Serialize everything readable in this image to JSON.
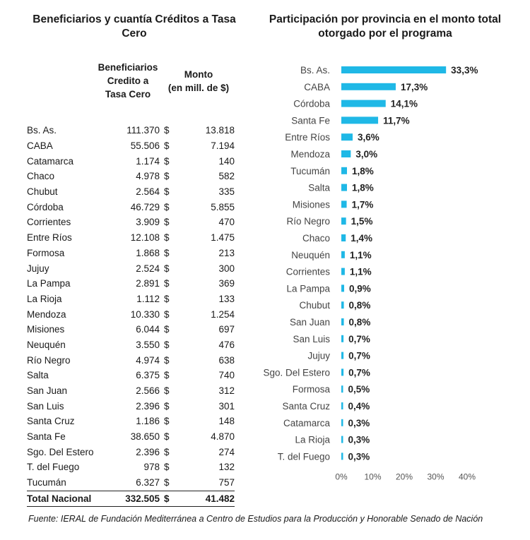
{
  "left_title": [
    "Beneficiarios y cuantía Créditos a Tasa",
    "Cero"
  ],
  "right_title": [
    "Participación por provincia en el monto total",
    "otorgado por el programa"
  ],
  "table": {
    "headers": {
      "beneficiarios": [
        "Beneficiarios",
        "Credito a",
        "Tasa Cero"
      ],
      "monto": [
        "Monto",
        "(en mill. de $)"
      ]
    },
    "rows": [
      {
        "provincia": "Bs. As.",
        "beneficiarios": "111.370",
        "moneda": "$",
        "monto": "13.818"
      },
      {
        "provincia": "CABA",
        "beneficiarios": "55.506",
        "moneda": "$",
        "monto": "7.194"
      },
      {
        "provincia": "Catamarca",
        "beneficiarios": "1.174",
        "moneda": "$",
        "monto": "140"
      },
      {
        "provincia": "Chaco",
        "beneficiarios": "4.978",
        "moneda": "$",
        "monto": "582"
      },
      {
        "provincia": "Chubut",
        "beneficiarios": "2.564",
        "moneda": "$",
        "monto": "335"
      },
      {
        "provincia": "Córdoba",
        "beneficiarios": "46.729",
        "moneda": "$",
        "monto": "5.855"
      },
      {
        "provincia": "Corrientes",
        "beneficiarios": "3.909",
        "moneda": "$",
        "monto": "470"
      },
      {
        "provincia": "Entre Ríos",
        "beneficiarios": "12.108",
        "moneda": "$",
        "monto": "1.475"
      },
      {
        "provincia": "Formosa",
        "beneficiarios": "1.868",
        "moneda": "$",
        "monto": "213"
      },
      {
        "provincia": "Jujuy",
        "beneficiarios": "2.524",
        "moneda": "$",
        "monto": "300"
      },
      {
        "provincia": "La Pampa",
        "beneficiarios": "2.891",
        "moneda": "$",
        "monto": "369"
      },
      {
        "provincia": "La Rioja",
        "beneficiarios": "1.112",
        "moneda": "$",
        "monto": "133"
      },
      {
        "provincia": "Mendoza",
        "beneficiarios": "10.330",
        "moneda": "$",
        "monto": "1.254"
      },
      {
        "provincia": "Misiones",
        "beneficiarios": "6.044",
        "moneda": "$",
        "monto": "697"
      },
      {
        "provincia": "Neuquén",
        "beneficiarios": "3.550",
        "moneda": "$",
        "monto": "476"
      },
      {
        "provincia": "Río Negro",
        "beneficiarios": "4.974",
        "moneda": "$",
        "monto": "638"
      },
      {
        "provincia": "Salta",
        "beneficiarios": "6.375",
        "moneda": "$",
        "monto": "740"
      },
      {
        "provincia": "San Juan",
        "beneficiarios": "2.566",
        "moneda": "$",
        "monto": "312"
      },
      {
        "provincia": "San Luis",
        "beneficiarios": "2.396",
        "moneda": "$",
        "monto": "301"
      },
      {
        "provincia": "Santa Cruz",
        "beneficiarios": "1.186",
        "moneda": "$",
        "monto": "148"
      },
      {
        "provincia": "Santa Fe",
        "beneficiarios": "38.650",
        "moneda": "$",
        "monto": "4.870"
      },
      {
        "provincia": "Sgo. Del Estero",
        "beneficiarios": "2.396",
        "moneda": "$",
        "monto": "274"
      },
      {
        "provincia": "T. del Fuego",
        "beneficiarios": "978",
        "moneda": "$",
        "monto": "132"
      },
      {
        "provincia": "Tucumán",
        "beneficiarios": "6.327",
        "moneda": "$",
        "monto": "757"
      }
    ],
    "total": {
      "provincia": "Total Nacional",
      "beneficiarios": "332.505",
      "moneda": "$",
      "monto": "41.482"
    }
  },
  "source": "Fuente: IERAL de Fundación Mediterránea a Centro de Estudios para la Producción y Honorable Senado de Nación",
  "chart_data": {
    "type": "bar",
    "orientation": "horizontal",
    "categories": [
      "Bs. As.",
      "CABA",
      "Córdoba",
      "Santa Fe",
      "Entre Ríos",
      "Mendoza",
      "Tucumán",
      "Salta",
      "Misiones",
      "Río Negro",
      "Chaco",
      "Neuquén",
      "Corrientes",
      "La Pampa",
      "Chubut",
      "San Juan",
      "San Luis",
      "Jujuy",
      "Sgo. Del Estero",
      "Formosa",
      "Santa Cruz",
      "Catamarca",
      "La Rioja",
      "T. del Fuego"
    ],
    "values": [
      33.3,
      17.3,
      14.1,
      11.7,
      3.6,
      3.0,
      1.8,
      1.8,
      1.7,
      1.5,
      1.4,
      1.1,
      1.1,
      0.9,
      0.8,
      0.8,
      0.7,
      0.7,
      0.7,
      0.5,
      0.4,
      0.3,
      0.3,
      0.3
    ],
    "value_labels": [
      "33,3%",
      "17,3%",
      "14,1%",
      "11,7%",
      "3,6%",
      "3,0%",
      "1,8%",
      "1,8%",
      "1,7%",
      "1,5%",
      "1,4%",
      "1,1%",
      "1,1%",
      "0,9%",
      "0,8%",
      "0,8%",
      "0,7%",
      "0,7%",
      "0,7%",
      "0,5%",
      "0,4%",
      "0,3%",
      "0,3%",
      "0,3%"
    ],
    "xlim": [
      0,
      40
    ],
    "xticks": [
      0,
      10,
      20,
      30,
      40
    ],
    "xtick_labels": [
      "0%",
      "10%",
      "20%",
      "30%",
      "40%"
    ],
    "grid": false,
    "bar_color": "#1fb8e6"
  }
}
